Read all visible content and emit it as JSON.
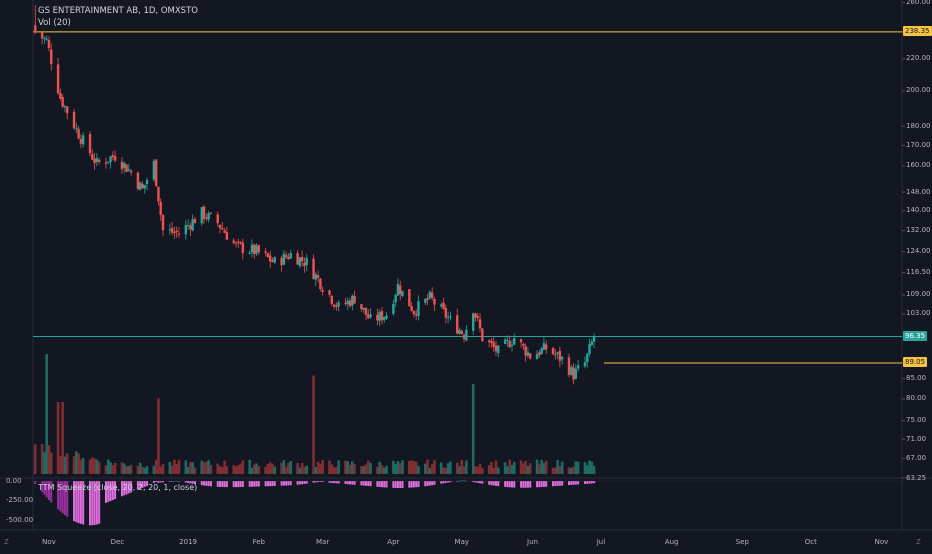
{
  "header": {
    "symbol_line": "GS ENTERTAINMENT AB, 1D, OMXSTO",
    "volume_line": "Vol (20)"
  },
  "oscillator": {
    "label": "TTM Squeeze (close, 20, 2, 20, 1, close)",
    "ticks": [
      "0.00",
      "-250.00",
      "-500.00"
    ],
    "range": [
      -620,
      40
    ]
  },
  "price_axis": {
    "ticks": [
      "260.00",
      "238.35",
      "220.00",
      "200.00",
      "180.00",
      "170.00",
      "160.00",
      "148.00",
      "140.00",
      "132.00",
      "124.00",
      "116.50",
      "109.00",
      "103.00",
      "96.00",
      "89.05",
      "85.00",
      "80.00",
      "75.00",
      "71.00",
      "67.00",
      "63.25"
    ],
    "resistance_label": "238.35",
    "current_label": "96.35",
    "support_label": "89.05"
  },
  "time_axis": {
    "ticks": [
      "Nov",
      "Dec",
      "2019",
      "Feb",
      "Mar",
      "Apr",
      "May",
      "Jun",
      "Jul",
      "Aug",
      "Sep",
      "Oct",
      "Nov"
    ]
  },
  "corners": {
    "left": "Z",
    "right": "Z"
  },
  "colors": {
    "up": "#26a69a",
    "down": "#ef5350",
    "up_vol": "#1e6b64",
    "down_vol": "#7f2f33",
    "hline_gold": "#f5c542",
    "hline_teal": "#26a69a",
    "osc_neg": "#e06ee0",
    "osc_neg_dark": "#9c2fa0"
  },
  "chart_data": {
    "type": "candlestick",
    "title": "GS ENTERTAINMENT AB, 1D, OMXSTO",
    "scale": "log",
    "ylim": [
      63.25,
      262
    ],
    "horizontal_lines": [
      238.35,
      96.35,
      89.05
    ],
    "anchors": [
      {
        "date": "2018-10-26",
        "close": 238
      },
      {
        "date": "2018-10-31",
        "close": 232
      },
      {
        "date": "2018-11-06",
        "close": 196
      },
      {
        "date": "2018-11-14",
        "close": 176
      },
      {
        "date": "2018-11-22",
        "close": 161
      },
      {
        "date": "2018-11-30",
        "close": 165
      },
      {
        "date": "2018-12-07",
        "close": 157
      },
      {
        "date": "2018-12-12",
        "close": 149
      },
      {
        "date": "2018-12-17",
        "close": 161
      },
      {
        "date": "2018-12-21",
        "close": 132
      },
      {
        "date": "2018-12-28",
        "close": 131
      },
      {
        "date": "2019-01-07",
        "close": 139
      },
      {
        "date": "2019-01-14",
        "close": 135
      },
      {
        "date": "2019-01-22",
        "close": 126
      },
      {
        "date": "2019-01-31",
        "close": 124
      },
      {
        "date": "2019-02-08",
        "close": 120
      },
      {
        "date": "2019-02-15",
        "close": 123
      },
      {
        "date": "2019-02-22",
        "close": 120
      },
      {
        "date": "2019-03-01",
        "close": 112
      },
      {
        "date": "2019-03-08",
        "close": 105
      },
      {
        "date": "2019-03-15",
        "close": 108
      },
      {
        "date": "2019-03-22",
        "close": 101
      },
      {
        "date": "2019-03-29",
        "close": 103
      },
      {
        "date": "2019-04-03",
        "close": 112
      },
      {
        "date": "2019-04-10",
        "close": 104
      },
      {
        "date": "2019-04-17",
        "close": 108
      },
      {
        "date": "2019-04-26",
        "close": 101
      },
      {
        "date": "2019-05-02",
        "close": 97
      },
      {
        "date": "2019-05-06",
        "close": 105
      },
      {
        "date": "2019-05-10",
        "close": 96
      },
      {
        "date": "2019-05-17",
        "close": 92
      },
      {
        "date": "2019-05-24",
        "close": 96
      },
      {
        "date": "2019-05-31",
        "close": 91
      },
      {
        "date": "2019-06-07",
        "close": 93
      },
      {
        "date": "2019-06-14",
        "close": 90
      },
      {
        "date": "2019-06-19",
        "close": 86
      },
      {
        "date": "2019-06-24",
        "close": 89
      },
      {
        "date": "2019-06-28",
        "close": 96.35
      }
    ],
    "volume_peaks": [
      {
        "date": "2018-10-31",
        "value": 1.0
      },
      {
        "date": "2018-11-05",
        "value": 0.6
      },
      {
        "date": "2018-11-07",
        "value": 0.6
      },
      {
        "date": "2018-12-19",
        "value": 0.63
      },
      {
        "date": "2019-02-25",
        "value": 0.82
      },
      {
        "date": "2019-05-06",
        "value": 0.75
      }
    ]
  }
}
